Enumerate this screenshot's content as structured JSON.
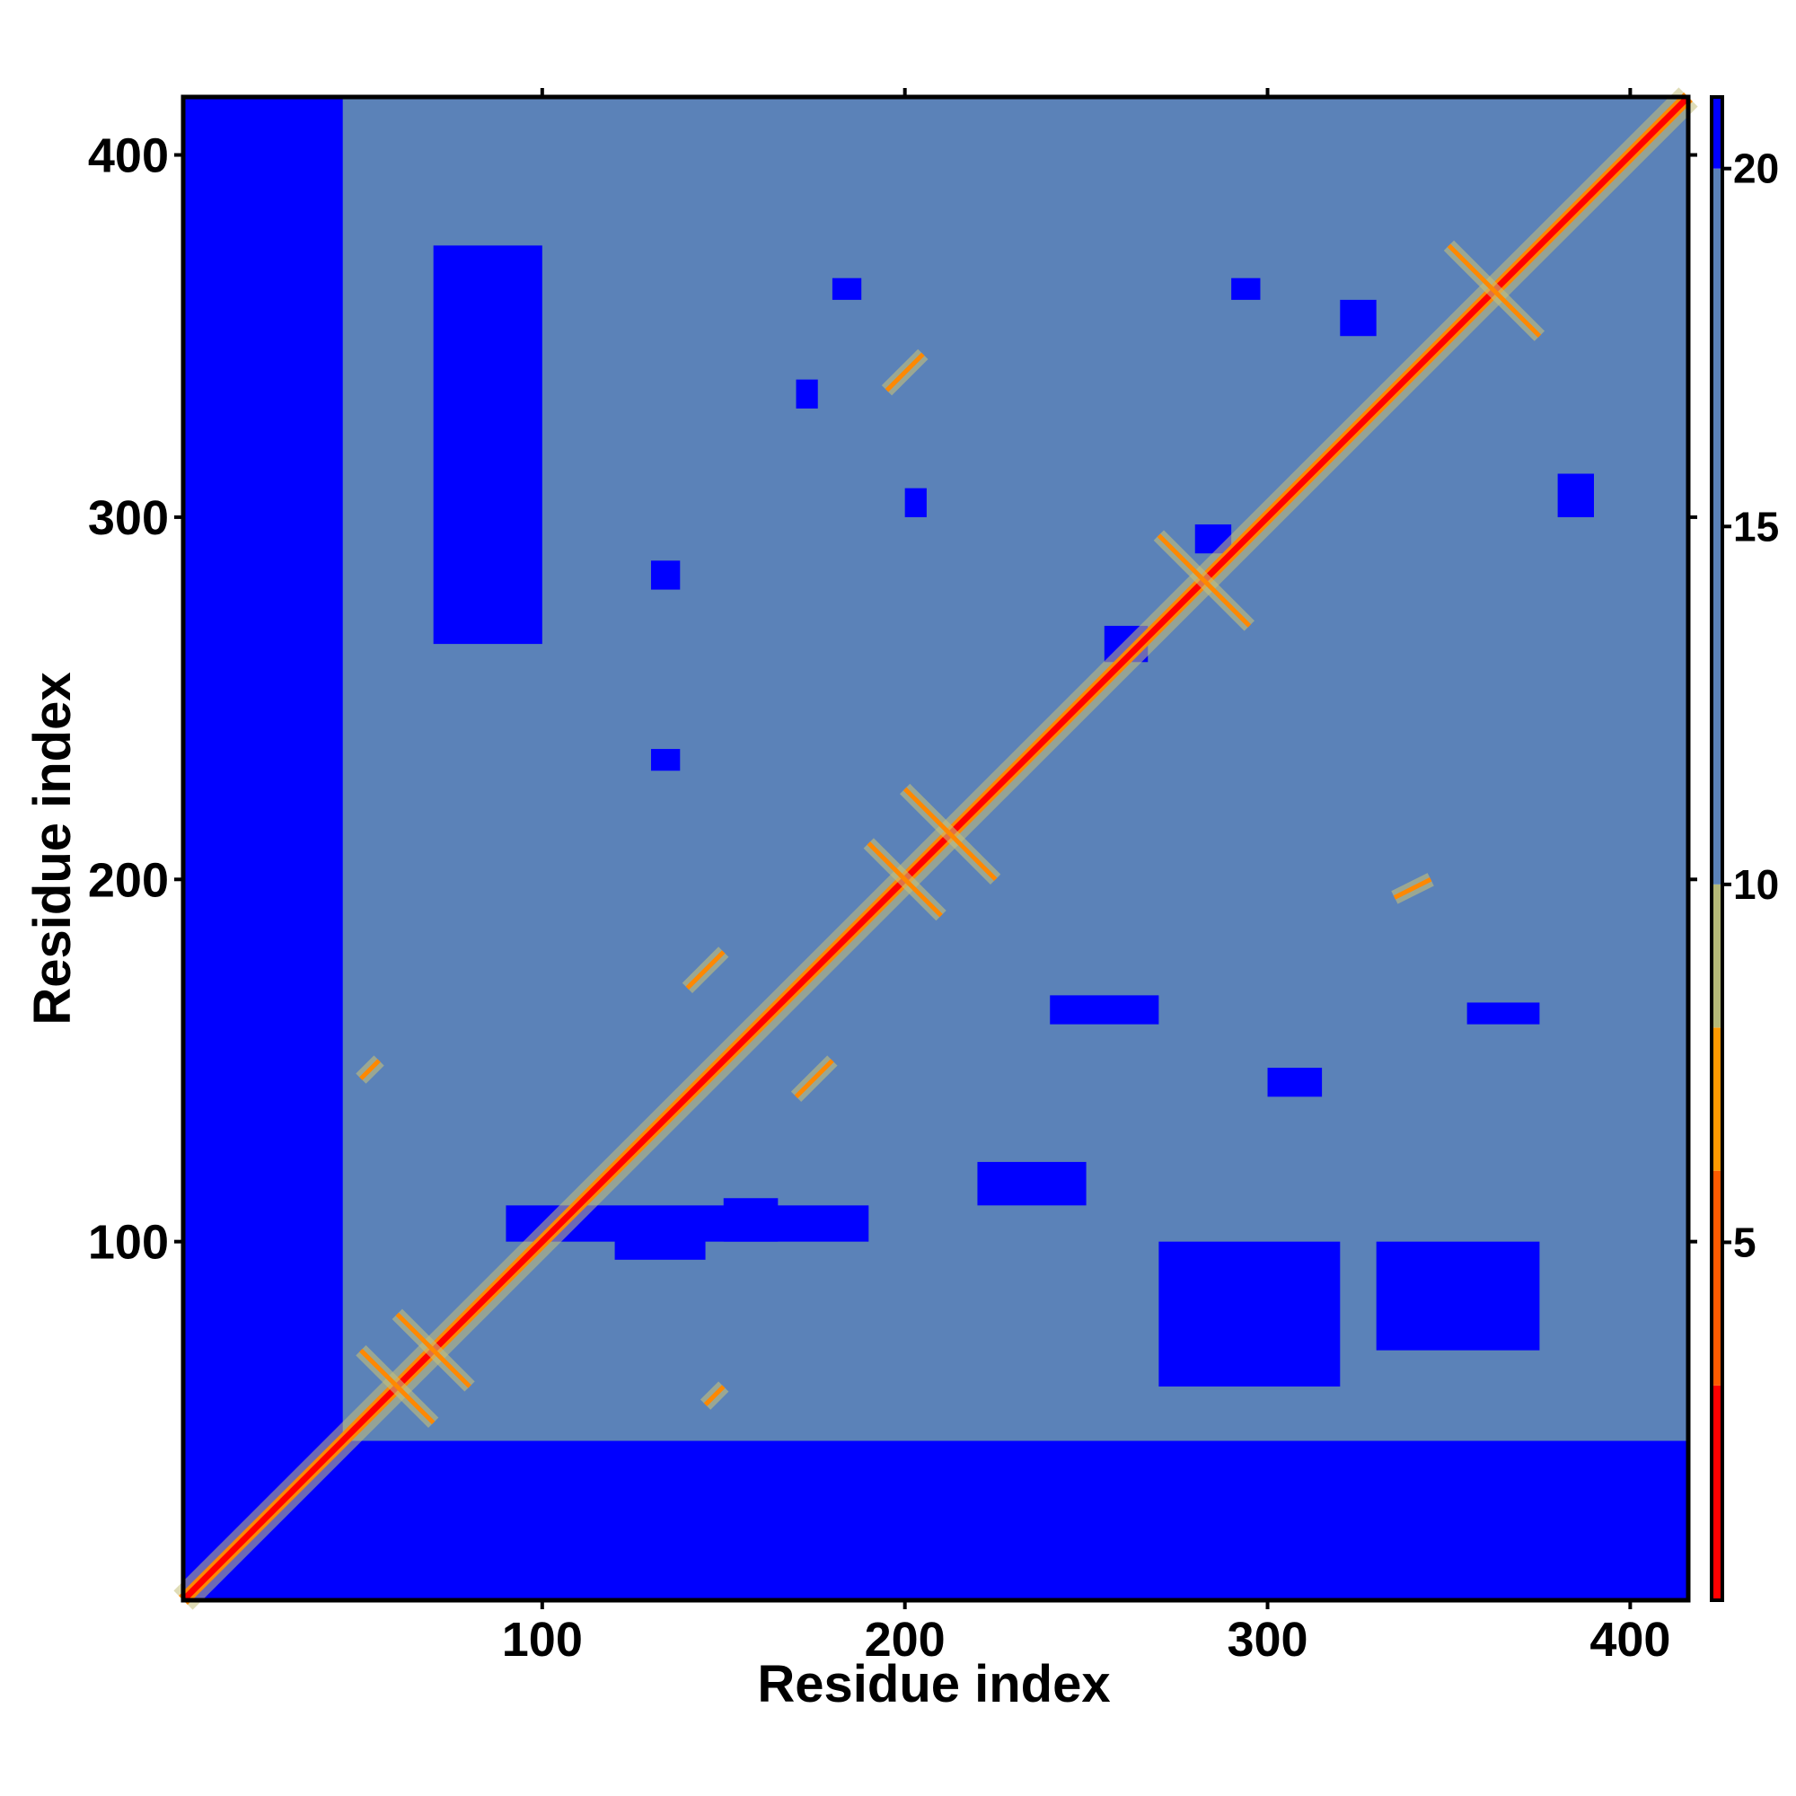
{
  "chart_data": {
    "type": "heatmap",
    "title": "",
    "xlabel": "Residue index",
    "ylabel": "Residue index",
    "xlim": [
      1,
      416
    ],
    "ylim": [
      1,
      416
    ],
    "x_ticks": [
      100,
      200,
      300,
      400
    ],
    "y_ticks": [
      100,
      200,
      300,
      400
    ],
    "x_tick_labels": [
      "100",
      "200",
      "300",
      "400"
    ],
    "y_tick_labels": [
      "100",
      "200",
      "300",
      "400"
    ],
    "colorbar": {
      "range": [
        0,
        21
      ],
      "ticks": [
        5,
        10,
        15,
        20
      ],
      "tick_labels": [
        "5",
        "10",
        "15",
        "20"
      ],
      "colors": [
        {
          "from": 0,
          "to": 3,
          "color": "#ff0000"
        },
        {
          "from": 3,
          "to": 6,
          "color": "#ff5a00"
        },
        {
          "from": 6,
          "to": 8,
          "color": "#ff9900"
        },
        {
          "from": 8,
          "to": 10,
          "color": "#b4b878"
        },
        {
          "from": 10,
          "to": 20,
          "color": "#5b82b8"
        },
        {
          "from": 20,
          "to": 21,
          "color": "#0000ff"
        }
      ]
    },
    "colors": {
      "far": "#0000ff",
      "mid": "#5b82b8",
      "near": "#c4c07a",
      "close": "#ff8800",
      "contact": "#ff0000"
    },
    "values_description_free": true,
    "diagonal": {
      "from": 1,
      "to": 416
    },
    "contact_lines": [
      {
        "x1": 50,
        "y1": 70,
        "x2": 70,
        "y2": 50
      },
      {
        "x1": 60,
        "y1": 80,
        "x2": 80,
        "y2": 60
      },
      {
        "x1": 140,
        "y1": 170,
        "x2": 150,
        "y2": 180
      },
      {
        "x1": 170,
        "y1": 140,
        "x2": 180,
        "y2": 150
      },
      {
        "x1": 190,
        "y1": 210,
        "x2": 210,
        "y2": 190
      },
      {
        "x1": 200,
        "y1": 225,
        "x2": 225,
        "y2": 200
      },
      {
        "x1": 270,
        "y1": 295,
        "x2": 295,
        "y2": 270
      },
      {
        "x1": 335,
        "y1": 195,
        "x2": 345,
        "y2": 200
      },
      {
        "x1": 350,
        "y1": 375,
        "x2": 375,
        "y2": 350
      },
      {
        "x1": 145,
        "y1": 55,
        "x2": 150,
        "y2": 60
      },
      {
        "x1": 50,
        "y1": 145,
        "x2": 55,
        "y2": 150
      },
      {
        "x1": 195,
        "y1": 335,
        "x2": 205,
        "y2": 345
      }
    ]
  }
}
